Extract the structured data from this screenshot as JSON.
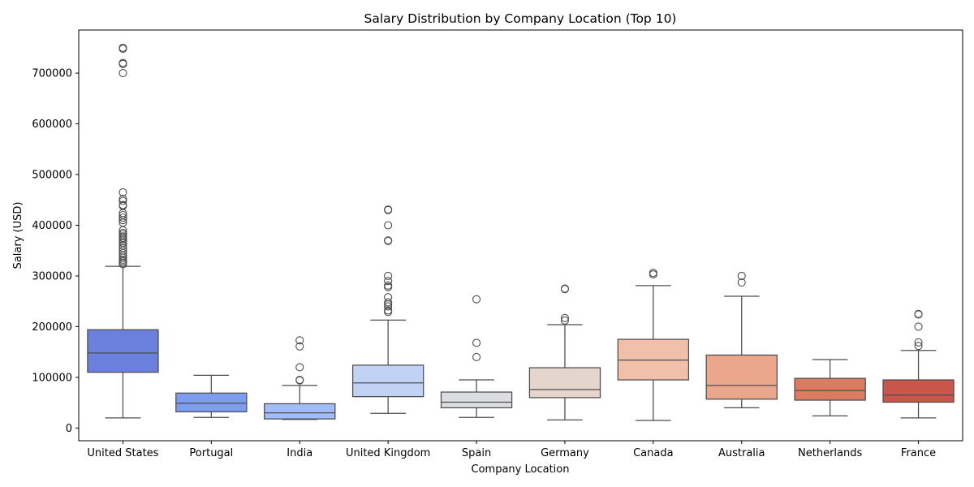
{
  "chart_data": {
    "type": "boxplot",
    "title": "Salary Distribution by Company Location (Top 10)",
    "xlabel": "Company Location",
    "ylabel": "Salary (USD)",
    "ylim": [
      -25000,
      785000
    ],
    "yticks": [
      0,
      100000,
      200000,
      300000,
      400000,
      500000,
      600000,
      700000
    ],
    "ytick_labels": [
      "0",
      "100000",
      "200000",
      "300000",
      "400000",
      "500000",
      "600000",
      "700000"
    ],
    "grid": false,
    "legend": "none",
    "colors": {
      "box_edge": "#4d4d4d",
      "axis": "#000000",
      "background": "#ffffff"
    },
    "categories": [
      "United States",
      "Portugal",
      "India",
      "United Kingdom",
      "Spain",
      "Germany",
      "Canada",
      "Australia",
      "Netherlands",
      "France"
    ],
    "boxes": [
      {
        "name": "United States",
        "color": "#6b80dd",
        "whisker_low": 20000,
        "q1": 110000,
        "median": 148000,
        "q3": 194000,
        "whisker_high": 319000,
        "outliers": [
          750000,
          748000,
          720000,
          718000,
          700000,
          465000,
          452000,
          448000,
          440000,
          438000,
          424000,
          420000,
          415000,
          410000,
          405000,
          390000,
          385000,
          382000,
          378000,
          375000,
          372000,
          368000,
          365000,
          360000,
          355000,
          350000,
          345000,
          340000,
          336000,
          332000,
          329000,
          326000,
          323000
        ]
      },
      {
        "name": "Portugal",
        "color": "#7f9df0",
        "whisker_low": 21000,
        "q1": 32000,
        "median": 49000,
        "q3": 69000,
        "whisker_high": 104000,
        "outliers": []
      },
      {
        "name": "India",
        "color": "#a0bdf9",
        "whisker_low": 17000,
        "q1": 18000,
        "median": 30000,
        "q3": 48000,
        "whisker_high": 84000,
        "outliers": [
          173000,
          161000,
          120000,
          95000,
          94000
        ]
      },
      {
        "name": "United Kingdom",
        "color": "#c0d3f5",
        "whisker_low": 29000,
        "q1": 62000,
        "median": 89000,
        "q3": 124000,
        "whisker_high": 213000,
        "outliers": [
          431000,
          430000,
          400000,
          370000,
          369000,
          300000,
          290000,
          281000,
          278000,
          258000,
          248000,
          244000,
          240000,
          232000,
          229000
        ]
      },
      {
        "name": "Spain",
        "color": "#dcdde3",
        "whisker_low": 21000,
        "q1": 40000,
        "median": 51000,
        "q3": 71000,
        "whisker_high": 95000,
        "outliers": [
          254000,
          168000,
          140000
        ]
      },
      {
        "name": "Germany",
        "color": "#e6d5cd",
        "whisker_low": 16000,
        "q1": 60000,
        "median": 76000,
        "q3": 119000,
        "whisker_high": 204000,
        "outliers": [
          275000,
          274000,
          217000,
          212000
        ]
      },
      {
        "name": "Canada",
        "color": "#f0c0a8",
        "whisker_low": 15000,
        "q1": 95000,
        "median": 134000,
        "q3": 175000,
        "whisker_high": 281000,
        "outliers": [
          306000,
          303000
        ]
      },
      {
        "name": "Australia",
        "color": "#eba78c",
        "whisker_low": 40000,
        "q1": 57000,
        "median": 84000,
        "q3": 144000,
        "whisker_high": 260000,
        "outliers": [
          300000,
          287000
        ]
      },
      {
        "name": "Netherlands",
        "color": "#dd7a62",
        "whisker_low": 24000,
        "q1": 55000,
        "median": 74000,
        "q3": 98000,
        "whisker_high": 135000,
        "outliers": []
      },
      {
        "name": "France",
        "color": "#c9554b",
        "whisker_low": 20000,
        "q1": 51000,
        "median": 65000,
        "q3": 95000,
        "whisker_high": 153000,
        "outliers": [
          225000,
          224000,
          200000,
          169000,
          162000
        ]
      }
    ]
  }
}
